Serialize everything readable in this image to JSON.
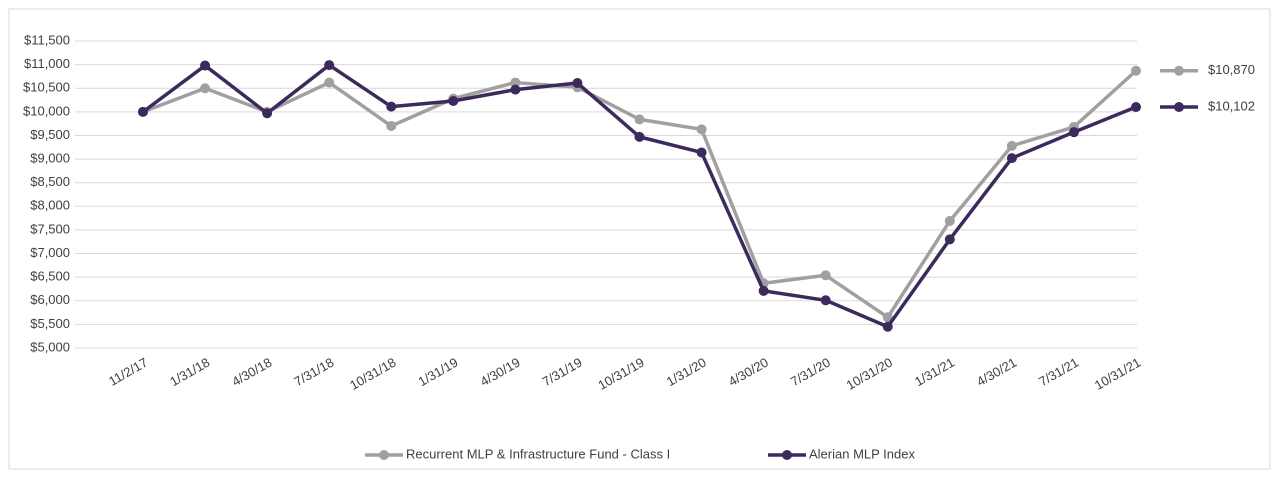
{
  "chart_data": {
    "type": "line",
    "categories": [
      "11/2/17",
      "1/31/18",
      "4/30/18",
      "7/31/18",
      "10/31/18",
      "1/31/19",
      "4/30/19",
      "7/31/19",
      "10/31/19",
      "1/31/20",
      "4/30/20",
      "7/31/20",
      "10/31/20",
      "1/31/21",
      "4/30/21",
      "7/31/21",
      "10/31/21"
    ],
    "series": [
      {
        "name": "Recurrent MLP & Infrastructure Fund - Class I",
        "color": "#a0a0a0",
        "end_label": "$10,870",
        "values": [
          10000,
          10500,
          10000,
          10620,
          9700,
          10280,
          10620,
          10520,
          9840,
          9630,
          6370,
          6540,
          5650,
          7690,
          9280,
          9680,
          10870
        ]
      },
      {
        "name": "Alerian MLP Index",
        "color": "#3d2a5c",
        "end_label": "$10,102",
        "values": [
          10000,
          10980,
          9970,
          10990,
          10110,
          10230,
          10470,
          10610,
          9470,
          9140,
          6210,
          6010,
          5450,
          7300,
          9020,
          9570,
          10102
        ]
      }
    ],
    "ylim": [
      5000,
      11500
    ],
    "yticks": [
      {
        "value": 5000,
        "label": "$5,000"
      },
      {
        "value": 5500,
        "label": "$5,500"
      },
      {
        "value": 6000,
        "label": "$6,000"
      },
      {
        "value": 6500,
        "label": "$6,500"
      },
      {
        "value": 7000,
        "label": "$7,000"
      },
      {
        "value": 7500,
        "label": "$7,500"
      },
      {
        "value": 8000,
        "label": "$8,000"
      },
      {
        "value": 8500,
        "label": "$8,500"
      },
      {
        "value": 9000,
        "label": "$9,000"
      },
      {
        "value": 9500,
        "label": "$9,500"
      },
      {
        "value": 10000,
        "label": "$10,000"
      },
      {
        "value": 10500,
        "label": "$10,500"
      },
      {
        "value": 11000,
        "label": "$11,000"
      },
      {
        "value": 11500,
        "label": "$11,500"
      }
    ],
    "grid": true,
    "legend": "bottom"
  }
}
